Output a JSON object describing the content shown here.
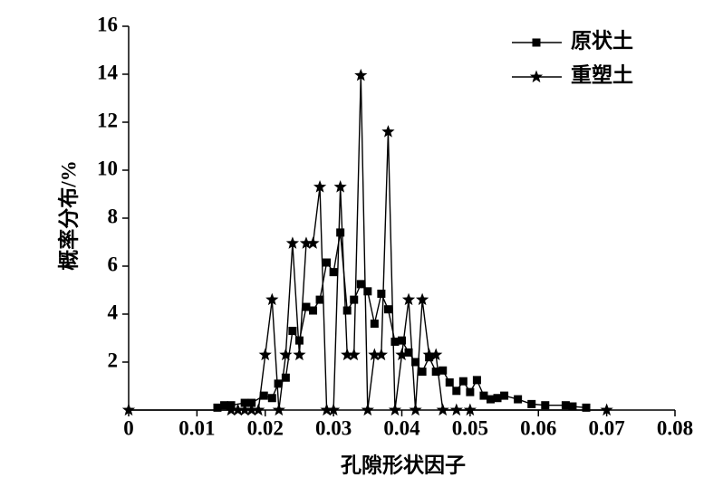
{
  "chart_data": {
    "type": "line",
    "x_label": "孔隙形状因子",
    "y_label": "概率分布/%",
    "xlim": [
      0,
      0.08
    ],
    "xticks": [
      0,
      0.01,
      0.02,
      0.03,
      0.04,
      0.05,
      0.06,
      0.07,
      0.08
    ],
    "ylim": [
      0,
      16
    ],
    "yticks": [
      2,
      4,
      6,
      8,
      10,
      12,
      14,
      16
    ],
    "grid": false,
    "legend": "upper right",
    "series": [
      {
        "name": "原状土",
        "color": "#000000",
        "marker": "square",
        "x": [
          0.013,
          0.014,
          0.015,
          0.017,
          0.018,
          0.0198,
          0.021,
          0.0219,
          0.023,
          0.024,
          0.025,
          0.026,
          0.027,
          0.028,
          0.029,
          0.03,
          0.031,
          0.032,
          0.033,
          0.034,
          0.035,
          0.036,
          0.037,
          0.038,
          0.039,
          0.04,
          0.041,
          0.042,
          0.043,
          0.044,
          0.045,
          0.046,
          0.047,
          0.048,
          0.049,
          0.05,
          0.051,
          0.052,
          0.053,
          0.054,
          0.055,
          0.057,
          0.059,
          0.061,
          0.064,
          0.065,
          0.067
        ],
        "values": [
          0.1,
          0.2,
          0.2,
          0.3,
          0.3,
          0.6,
          0.5,
          1.1,
          1.35,
          3.3,
          2.9,
          4.3,
          4.15,
          4.6,
          6.15,
          5.75,
          7.4,
          4.15,
          4.6,
          5.25,
          4.95,
          3.6,
          4.85,
          4.2,
          2.85,
          2.9,
          2.4,
          2.0,
          1.6,
          2.2,
          1.6,
          1.65,
          1.15,
          0.8,
          1.2,
          0.75,
          1.25,
          0.6,
          0.45,
          0.5,
          0.6,
          0.45,
          0.25,
          0.2,
          0.2,
          0.15,
          0.1
        ]
      },
      {
        "name": "重塑土",
        "color": "#000000",
        "marker": "star",
        "x": [
          0,
          0.015,
          0.016,
          0.017,
          0.018,
          0.019,
          0.02,
          0.021,
          0.022,
          0.023,
          0.024,
          0.025,
          0.026,
          0.027,
          0.028,
          0.029,
          0.03,
          0.031,
          0.032,
          0.033,
          0.034,
          0.035,
          0.036,
          0.037,
          0.038,
          0.039,
          0.04,
          0.041,
          0.042,
          0.043,
          0.044,
          0.045,
          0.046,
          0.048,
          0.05,
          0.07
        ],
        "values": [
          0,
          0,
          0,
          0,
          0,
          0,
          2.3,
          4.6,
          0,
          2.3,
          6.95,
          2.3,
          6.95,
          6.95,
          9.3,
          0,
          0,
          9.3,
          2.3,
          2.3,
          13.95,
          0,
          2.3,
          2.3,
          11.6,
          0,
          2.3,
          4.6,
          0,
          4.6,
          2.3,
          2.3,
          0,
          0,
          0,
          0
        ]
      }
    ]
  }
}
